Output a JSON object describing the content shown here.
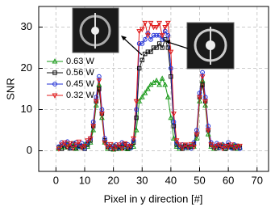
{
  "chart_data": {
    "type": "line",
    "xlabel": "Pixel in y direction [#]",
    "ylabel": "SNR",
    "xlim": [
      -6,
      74
    ],
    "xticks": [
      0,
      10,
      20,
      30,
      40,
      50,
      60,
      70
    ],
    "ylim": [
      -5,
      35
    ],
    "yticks": [
      0,
      10,
      20,
      30
    ],
    "grid": true,
    "legend": "upper left",
    "x": [
      1,
      2,
      3,
      4,
      5,
      6,
      7,
      8,
      9,
      10,
      11,
      12,
      13,
      14,
      15,
      16,
      17,
      18,
      19,
      20,
      21,
      22,
      23,
      24,
      25,
      26,
      27,
      28,
      29,
      30,
      31,
      32,
      33,
      34,
      35,
      36,
      37,
      38,
      39,
      40,
      41,
      42,
      43,
      44,
      45,
      46,
      47,
      48,
      49,
      50,
      51,
      52,
      53,
      54,
      55,
      56,
      57,
      58,
      59,
      60,
      61,
      62,
      63,
      64
    ],
    "series": [
      {
        "name": "0.63 W",
        "color": "#1a9a1a",
        "marker": "triangle-up",
        "values": [
          0.5,
          1,
          0.8,
          1.5,
          0.7,
          1.2,
          0.5,
          1,
          0.8,
          1.5,
          1,
          2,
          5,
          11,
          16,
          8,
          2,
          0.5,
          1,
          0.3,
          0.8,
          0.5,
          1,
          0.6,
          0.4,
          0.8,
          1,
          5,
          12,
          13,
          14,
          15,
          16,
          16.5,
          17,
          16,
          17.5,
          16,
          13,
          8,
          3,
          1,
          0.5,
          0.8,
          1,
          0.7,
          1.2,
          1,
          3,
          12,
          17,
          11,
          4,
          1,
          0.5,
          1,
          0.8,
          1.5,
          0.6,
          1,
          0.8,
          1.2,
          0.5,
          0.8
        ]
      },
      {
        "name": "0.56 W",
        "color": "#111111",
        "marker": "square",
        "values": [
          0.8,
          0.5,
          1.5,
          1,
          0.6,
          1.8,
          0.7,
          1.2,
          1,
          0.5,
          1.5,
          2.5,
          6,
          12,
          15,
          9,
          2.5,
          1,
          0.5,
          1.2,
          0.5,
          1,
          0.7,
          1.5,
          0.6,
          1,
          2,
          8,
          20,
          22,
          23.5,
          24,
          24,
          25,
          25,
          26,
          25,
          27,
          25,
          18,
          6,
          1.5,
          1,
          0.5,
          1.2,
          0.8,
          1,
          1.5,
          4,
          13,
          16,
          12,
          5,
          1.5,
          1,
          0.6,
          1.2,
          1,
          0.5,
          1.3,
          1,
          0.6,
          1.2,
          0.8
        ]
      },
      {
        "name": "0.45 W",
        "color": "#1f2fd6",
        "marker": "circle",
        "values": [
          1,
          2,
          1.5,
          2.2,
          0.8,
          1.5,
          2,
          1,
          1.8,
          0.6,
          2,
          3,
          7,
          13,
          18,
          10,
          3,
          1.5,
          1,
          0.8,
          1.5,
          0.8,
          2,
          1,
          1.5,
          0.7,
          2.5,
          10,
          26,
          26,
          27,
          28.5,
          27,
          28,
          28,
          28,
          27,
          29,
          28,
          20,
          7,
          2,
          1,
          1.5,
          0.8,
          1.2,
          0.6,
          2,
          5,
          14,
          19,
          13,
          6,
          2,
          1,
          1.8,
          0.8,
          1.5,
          1,
          2,
          0.7,
          1.5,
          1,
          0.5
        ]
      },
      {
        "name": "0.32 W",
        "color": "#e01b1b",
        "marker": "triangle-down",
        "values": [
          0.5,
          1.5,
          2,
          1,
          1.8,
          0.7,
          1.5,
          2.2,
          0.8,
          1.2,
          2.5,
          3,
          6,
          12,
          17,
          9,
          2,
          1,
          1.6,
          0.5,
          1,
          1.5,
          0.6,
          1.8,
          1,
          1.2,
          3,
          12,
          29,
          29.5,
          31,
          28,
          31,
          30,
          30,
          31,
          28,
          30,
          31,
          24,
          9,
          2.5,
          1.5,
          0.7,
          1.5,
          1,
          1.6,
          1,
          4,
          13,
          18,
          12,
          5,
          1.5,
          0.8,
          1.2,
          1.5,
          0.6,
          1.2,
          1,
          1.5,
          0.8,
          1,
          1.2
        ]
      }
    ]
  }
}
